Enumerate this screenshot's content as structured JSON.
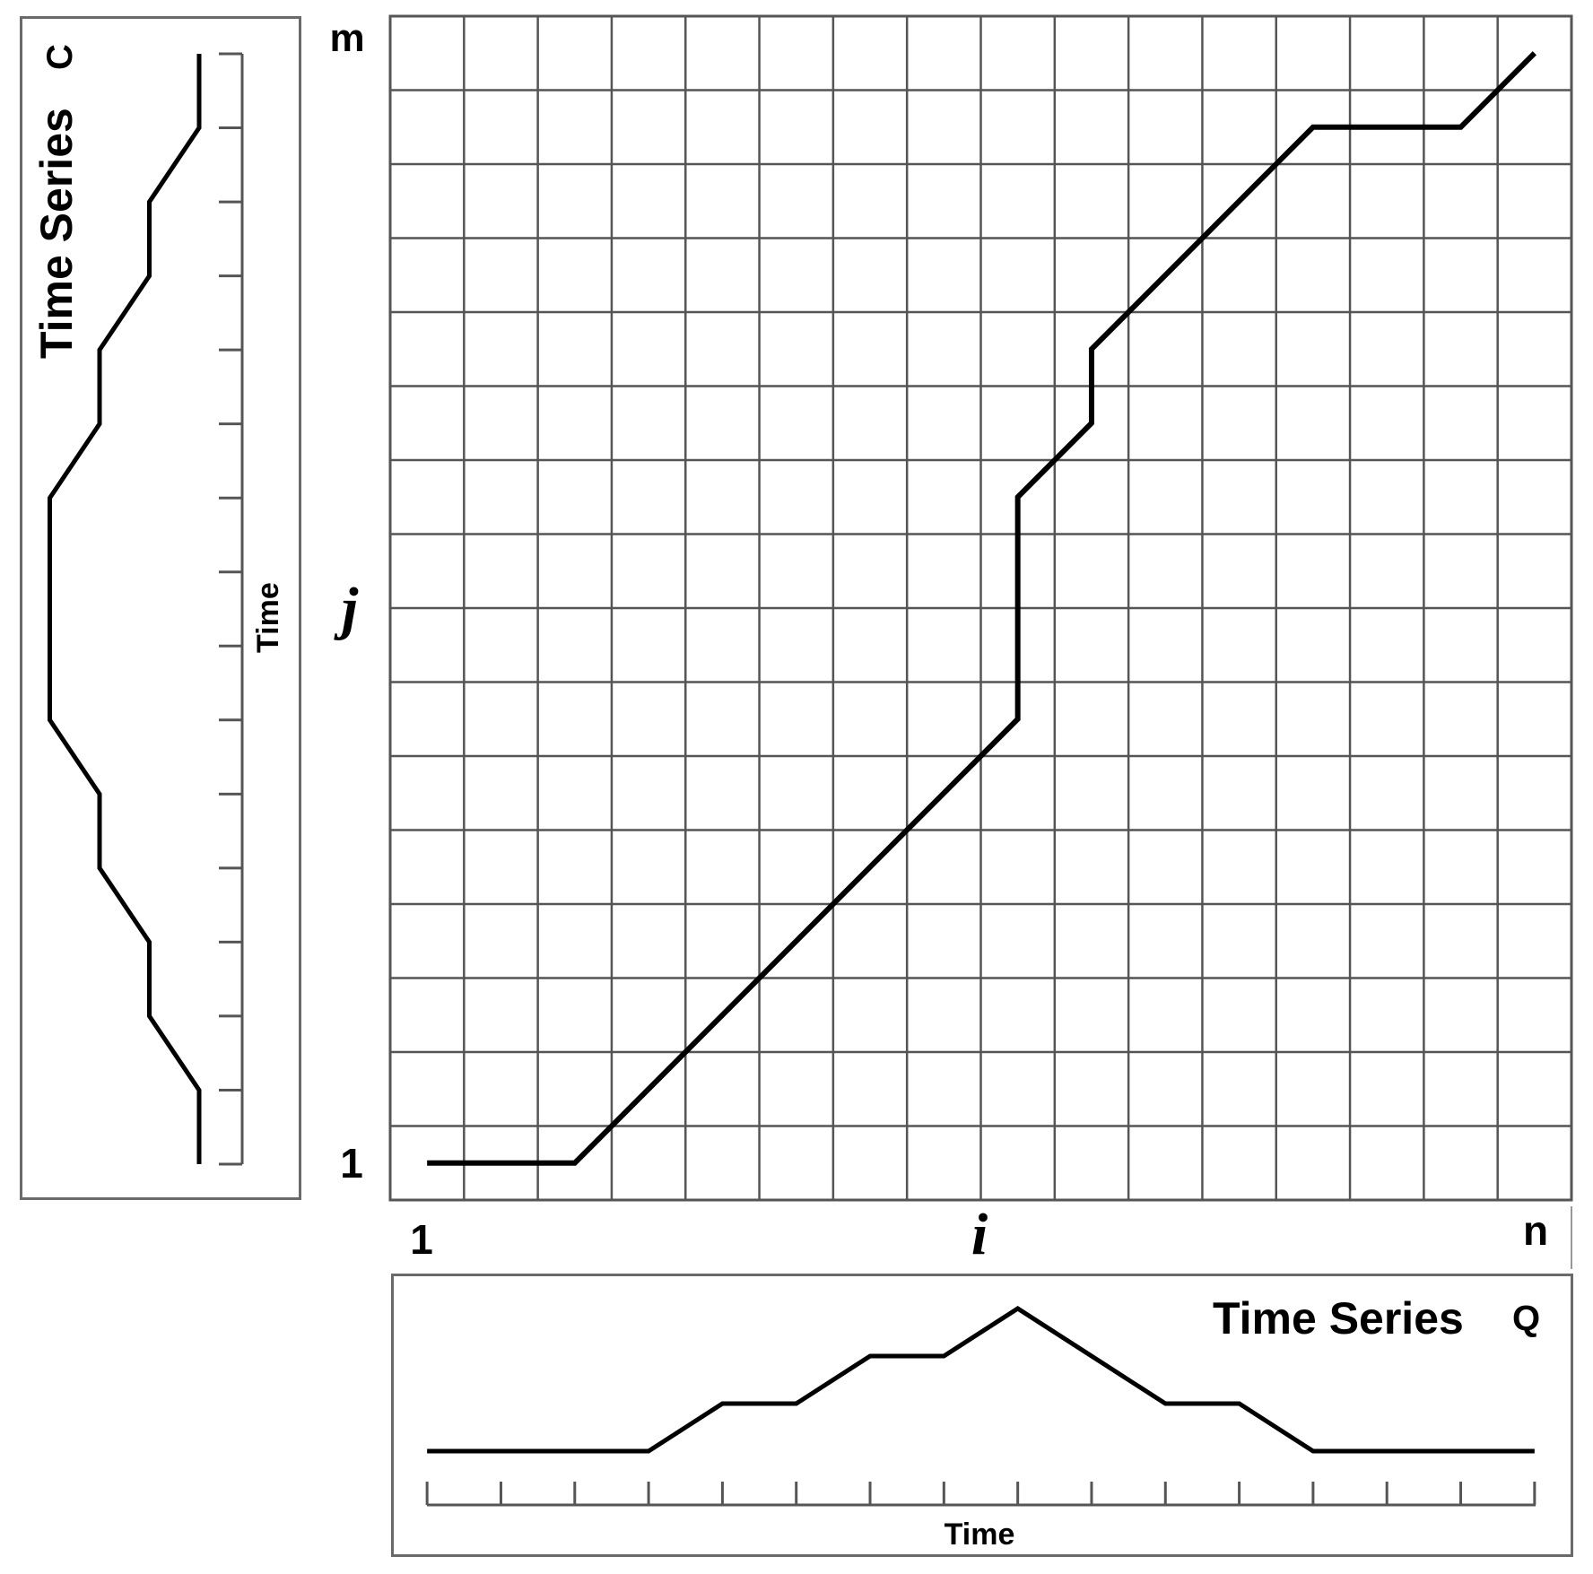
{
  "labels": {
    "series_c_title": "Time Series",
    "series_c_letter": "C",
    "series_c_axis": "Time",
    "series_q_title": "Time Series",
    "series_q_letter": "Q",
    "series_q_axis": "Time",
    "grid_x_start": "1",
    "grid_x_var": "i",
    "grid_x_end": "n",
    "grid_y_start": "1",
    "grid_y_var": "j",
    "grid_y_end": "m"
  },
  "chart_data": [
    {
      "type": "line",
      "name": "warping path",
      "x": [
        1,
        3,
        9,
        9,
        10,
        10,
        13,
        15,
        16
      ],
      "y": [
        1,
        1,
        7,
        10,
        11,
        12,
        15,
        15,
        16
      ],
      "xlim": [
        1,
        16
      ],
      "ylim": [
        1,
        16
      ],
      "grid": true
    },
    {
      "type": "line",
      "name": "Time Series Q",
      "x": [
        1,
        2,
        3,
        4,
        5,
        6,
        7,
        8,
        9,
        10,
        11,
        12,
        13,
        14,
        15,
        16
      ],
      "y": [
        0,
        0,
        0,
        0,
        1,
        1,
        2,
        2,
        3,
        2,
        1,
        1,
        0,
        0,
        0,
        0
      ]
    },
    {
      "type": "line",
      "name": "Time Series C",
      "x": [
        1,
        2,
        3,
        4,
        5,
        6,
        7,
        8,
        9,
        10,
        11,
        12,
        13,
        14,
        15,
        16
      ],
      "y": [
        0,
        0,
        1,
        1,
        2,
        2,
        3,
        3,
        3,
        3,
        2,
        2,
        1,
        1,
        0,
        0
      ]
    }
  ]
}
